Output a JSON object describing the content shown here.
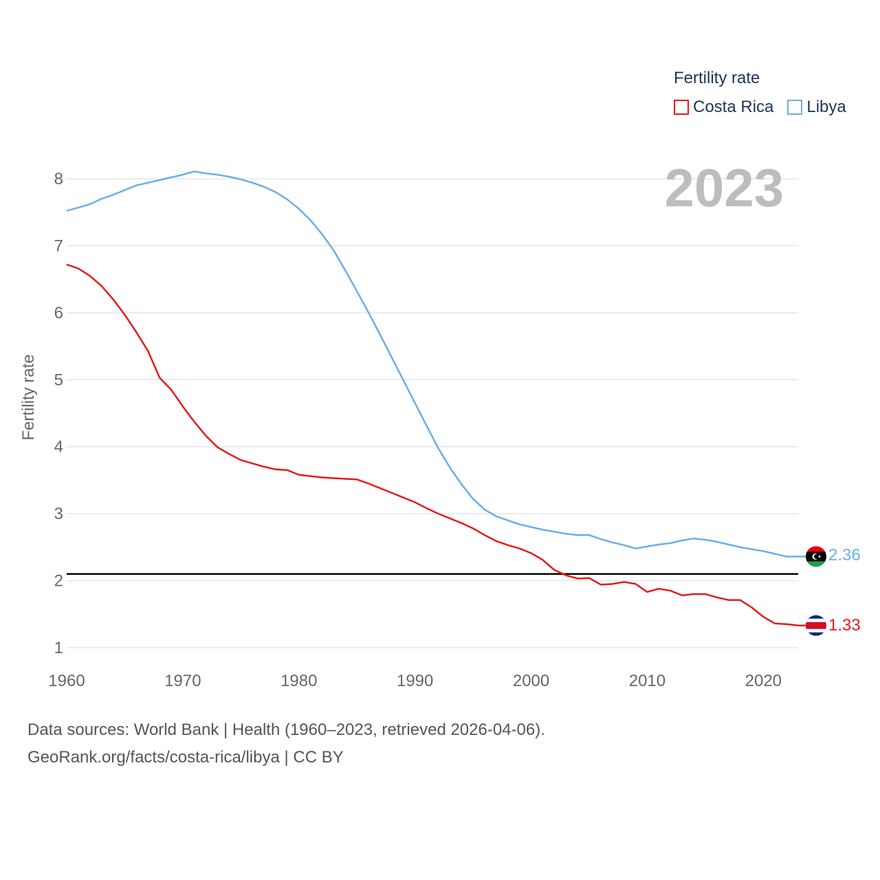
{
  "legend": {
    "title": "Fertility rate",
    "items": [
      {
        "name": "Costa Rica",
        "color": "#e8191b"
      },
      {
        "name": "Libya",
        "color": "#6aaee8"
      }
    ]
  },
  "year_label": "2023",
  "footer": {
    "line1": "Data sources: World Bank | Health (1960–2023, retrieved 2026-04-06).",
    "line2": "GeoRank.org/facts/costa-rica/libya | CC BY"
  },
  "end_labels": {
    "costa_rica": "1.33",
    "libya": "2.36"
  },
  "chart_data": {
    "type": "line",
    "title": "Fertility rate",
    "xlabel": "",
    "ylabel": "Fertility rate",
    "xlim": [
      1960,
      2023
    ],
    "ylim": [
      1,
      8.4
    ],
    "xticks": [
      1960,
      1970,
      1980,
      1990,
      2000,
      2010,
      2020
    ],
    "yticks": [
      1,
      2,
      3,
      4,
      5,
      6,
      7,
      8
    ],
    "reference_line": 2.1,
    "grid": true,
    "legend_position": "top-right",
    "x": [
      1960,
      1961,
      1962,
      1963,
      1964,
      1965,
      1966,
      1967,
      1968,
      1969,
      1970,
      1971,
      1972,
      1973,
      1974,
      1975,
      1976,
      1977,
      1978,
      1979,
      1980,
      1981,
      1982,
      1983,
      1984,
      1985,
      1986,
      1987,
      1988,
      1989,
      1990,
      1991,
      1992,
      1993,
      1994,
      1995,
      1996,
      1997,
      1998,
      1999,
      2000,
      2001,
      2002,
      2003,
      2004,
      2005,
      2006,
      2007,
      2008,
      2009,
      2010,
      2011,
      2012,
      2013,
      2014,
      2015,
      2016,
      2017,
      2018,
      2019,
      2020,
      2021,
      2022,
      2023
    ],
    "series": [
      {
        "name": "Costa Rica",
        "color": "#e8191b",
        "values": [
          6.72,
          6.66,
          6.55,
          6.4,
          6.2,
          5.97,
          5.71,
          5.43,
          5.03,
          4.85,
          4.6,
          4.37,
          4.16,
          3.99,
          3.89,
          3.8,
          3.75,
          3.7,
          3.66,
          3.65,
          3.58,
          3.56,
          3.54,
          3.53,
          3.52,
          3.51,
          3.45,
          3.38,
          3.31,
          3.24,
          3.17,
          3.08,
          3.0,
          2.93,
          2.86,
          2.78,
          2.68,
          2.59,
          2.53,
          2.48,
          2.41,
          2.31,
          2.16,
          2.08,
          2.03,
          2.04,
          1.94,
          1.95,
          1.98,
          1.95,
          1.83,
          1.88,
          1.85,
          1.78,
          1.8,
          1.8,
          1.75,
          1.71,
          1.71,
          1.6,
          1.46,
          1.36,
          1.35,
          1.33
        ]
      },
      {
        "name": "Libya",
        "color": "#6aaee8",
        "values": [
          7.52,
          7.57,
          7.62,
          7.7,
          7.76,
          7.83,
          7.9,
          7.94,
          7.98,
          8.02,
          8.06,
          8.11,
          8.08,
          8.06,
          8.03,
          7.99,
          7.94,
          7.88,
          7.8,
          7.69,
          7.55,
          7.38,
          7.17,
          6.93,
          6.63,
          6.32,
          6.0,
          5.67,
          5.33,
          4.99,
          4.65,
          4.31,
          3.98,
          3.69,
          3.44,
          3.22,
          3.06,
          2.96,
          2.9,
          2.84,
          2.8,
          2.76,
          2.73,
          2.7,
          2.68,
          2.68,
          2.62,
          2.57,
          2.53,
          2.48,
          2.51,
          2.54,
          2.56,
          2.6,
          2.63,
          2.61,
          2.58,
          2.54,
          2.5,
          2.47,
          2.44,
          2.4,
          2.36,
          2.36
        ]
      }
    ]
  }
}
